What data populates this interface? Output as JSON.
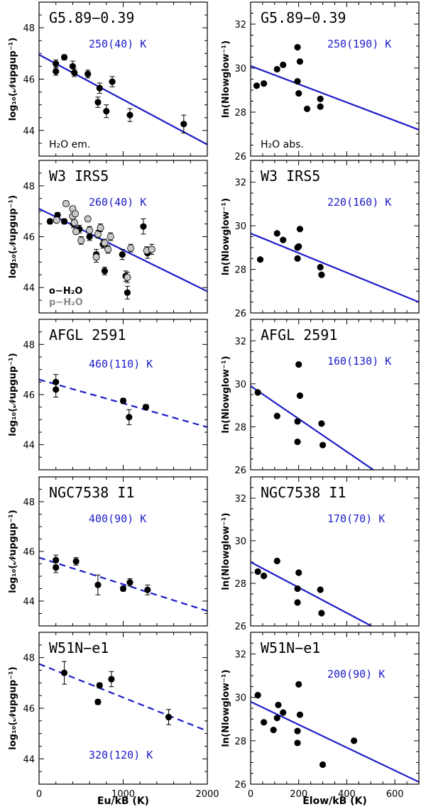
{
  "chart_data": [
    {
      "type": "scatter",
      "panel": "left-1",
      "title": "G5.89−0.39",
      "temperature_label": "250(40) K",
      "note": "H₂O em.",
      "ylabel": "log₁₀(𝒩upgup⁻¹)",
      "xlim": [
        0,
        2000
      ],
      "ylim": [
        43,
        49
      ],
      "yticks": [
        "44",
        "46",
        "48"
      ],
      "fit": {
        "style": "solid",
        "x": [
          0,
          2000
        ],
        "y": [
          46.95,
          43.45
        ]
      },
      "series": [
        {
          "x": [
            200,
            200,
            300,
            400,
            420,
            580,
            700,
            720,
            800,
            870,
            1080,
            1720
          ],
          "y": [
            46.6,
            46.3,
            46.85,
            46.5,
            46.25,
            46.2,
            45.1,
            45.65,
            44.75,
            45.9,
            44.6,
            44.25
          ],
          "yerr": [
            0.15,
            0.15,
            0.1,
            0.2,
            0.15,
            0.15,
            0.2,
            0.2,
            0.25,
            0.2,
            0.25,
            0.35
          ]
        }
      ]
    },
    {
      "type": "scatter",
      "panel": "right-1",
      "title": "G5.89−0.39",
      "temperature_label": "250(190) K",
      "note": "H₂O abs.",
      "ylabel": "ln(Nlowglow⁻¹)",
      "xlim": [
        0,
        700
      ],
      "ylim": [
        26,
        33
      ],
      "yticks": [
        "26",
        "28",
        "30",
        "32"
      ],
      "fit": {
        "style": "solid",
        "x": [
          0,
          700
        ],
        "y": [
          30.1,
          27.2
        ]
      },
      "series": [
        {
          "x": [
            25,
            55,
            110,
            135,
            195,
            195,
            200,
            205,
            235,
            290,
            290
          ],
          "y": [
            29.2,
            29.3,
            29.95,
            30.15,
            30.95,
            29.4,
            28.85,
            30.3,
            28.15,
            28.6,
            28.25
          ]
        }
      ]
    },
    {
      "type": "scatter",
      "panel": "left-2",
      "title": "W3 IRS5",
      "temperature_label": "260(40) K",
      "legend": [
        "o−H₂O",
        "p−H₂O"
      ],
      "ylabel": "log₁₀(𝒩upgup⁻¹)",
      "xlim": [
        0,
        2000
      ],
      "ylim": [
        43,
        49
      ],
      "yticks": [
        "44",
        "46",
        "48"
      ],
      "fit": {
        "style": "solid",
        "x": [
          0,
          2000
        ],
        "y": [
          47.1,
          43.85
        ]
      },
      "series": [
        {
          "name": "o−H₂O",
          "x": [
            130,
            220,
            300,
            410,
            480,
            600,
            680,
            760,
            780,
            990,
            1030,
            1050,
            1240,
            1290
          ],
          "y": [
            46.6,
            46.85,
            46.6,
            46.5,
            46.3,
            46.0,
            45.3,
            45.7,
            44.65,
            45.3,
            44.45,
            43.8,
            46.4,
            45.35
          ],
          "yerr": [
            0.1,
            0.1,
            0.1,
            0.15,
            0.15,
            0.15,
            0.2,
            0.15,
            0.15,
            0.2,
            0.2,
            0.25,
            0.3,
            0.2
          ]
        },
        {
          "name": "p−H₂O",
          "x": [
            210,
            320,
            400,
            400,
            420,
            430,
            440,
            500,
            580,
            600,
            680,
            700,
            730,
            780,
            820,
            850,
            1050,
            1090,
            1280,
            1340
          ],
          "y": [
            46.65,
            47.3,
            47.1,
            46.8,
            46.55,
            46.9,
            46.2,
            45.85,
            46.7,
            46.25,
            45.2,
            46.1,
            46.35,
            45.75,
            45.5,
            46.0,
            44.4,
            45.55,
            45.45,
            45.5
          ],
          "yerr": [
            0.1,
            0.1,
            0.1,
            0.1,
            0.1,
            0.1,
            0.1,
            0.15,
            0.1,
            0.15,
            0.2,
            0.15,
            0.15,
            0.15,
            0.15,
            0.15,
            0.2,
            0.15,
            0.15,
            0.2
          ]
        }
      ]
    },
    {
      "type": "scatter",
      "panel": "right-2",
      "title": "W3 IRS5",
      "temperature_label": "220(160) K",
      "ylabel": "ln(Nlowglow⁻¹)",
      "xlim": [
        0,
        700
      ],
      "ylim": [
        26,
        33
      ],
      "yticks": [
        "26",
        "28",
        "30",
        "32"
      ],
      "fit": {
        "style": "solid",
        "x": [
          0,
          700
        ],
        "y": [
          29.65,
          26.5
        ]
      },
      "series": [
        {
          "x": [
            40,
            110,
            135,
            195,
            195,
            200,
            205,
            290,
            295
          ],
          "y": [
            28.45,
            29.65,
            29.35,
            29.0,
            28.5,
            29.05,
            29.85,
            28.1,
            27.75
          ]
        }
      ]
    },
    {
      "type": "scatter",
      "panel": "left-3",
      "title": "AFGL 2591",
      "temperature_label": "460(110) K",
      "ylabel": "log₁₀(𝒩upgup⁻¹)",
      "xlim": [
        0,
        2000
      ],
      "ylim": [
        43,
        49
      ],
      "yticks": [
        "44",
        "46",
        "48"
      ],
      "fit": {
        "style": "dashed",
        "x": [
          0,
          2000
        ],
        "y": [
          46.6,
          44.7
        ]
      },
      "series": [
        {
          "x": [
            200,
            200,
            1000,
            1070,
            1270
          ],
          "y": [
            46.5,
            46.2,
            45.75,
            45.1,
            45.5
          ],
          "yerr": [
            0.3,
            0.3,
            0.1,
            0.3,
            0.1
          ]
        }
      ]
    },
    {
      "type": "scatter",
      "panel": "right-3",
      "title": "AFGL 2591",
      "temperature_label": "160(130) K",
      "ylabel": "ln(Nlowglow⁻¹)",
      "xlim": [
        0,
        700
      ],
      "ylim": [
        26,
        33
      ],
      "yticks": [
        "26",
        "28",
        "30",
        "32"
      ],
      "fit": {
        "style": "solid",
        "x": [
          0,
          510
        ],
        "y": [
          29.9,
          26.0
        ]
      },
      "series": [
        {
          "x": [
            30,
            110,
            195,
            195,
            200,
            205,
            295,
            300
          ],
          "y": [
            29.6,
            28.5,
            28.25,
            27.3,
            30.9,
            29.45,
            28.15,
            27.15
          ]
        }
      ]
    },
    {
      "type": "scatter",
      "panel": "left-4",
      "title": "NGC7538 I1",
      "temperature_label": "400(90) K",
      "ylabel": "log₁₀(𝒩upgup⁻¹)",
      "xlim": [
        0,
        2000
      ],
      "ylim": [
        43,
        49
      ],
      "yticks": [
        "44",
        "46",
        "48"
      ],
      "fit": {
        "style": "dashed",
        "x": [
          0,
          2000
        ],
        "y": [
          45.75,
          43.6
        ]
      },
      "series": [
        {
          "x": [
            200,
            200,
            440,
            700,
            1000,
            1080,
            1290
          ],
          "y": [
            45.65,
            45.35,
            45.6,
            44.65,
            44.5,
            44.75,
            44.45
          ],
          "yerr": [
            0.2,
            0.2,
            0.15,
            0.4,
            0.1,
            0.15,
            0.2
          ]
        }
      ]
    },
    {
      "type": "scatter",
      "panel": "right-4",
      "title": "NGC7538 I1",
      "temperature_label": "170(70) K",
      "ylabel": "ln(Nlowglow⁻¹)",
      "xlim": [
        0,
        700
      ],
      "ylim": [
        26,
        33
      ],
      "yticks": [
        "26",
        "28",
        "30",
        "32"
      ],
      "fit": {
        "style": "solid",
        "x": [
          0,
          510
        ],
        "y": [
          29.0,
          25.95
        ]
      },
      "series": [
        {
          "x": [
            30,
            55,
            110,
            195,
            195,
            200,
            290,
            295
          ],
          "y": [
            28.55,
            28.35,
            29.05,
            27.75,
            27.1,
            28.5,
            27.7,
            26.6
          ]
        }
      ]
    },
    {
      "type": "scatter",
      "panel": "left-5",
      "title": "W51N−e1",
      "temperature_label": "320(120) K",
      "ylabel": "log₁₀(𝒩upgup⁻¹)",
      "xlabel": "Eu/kB (K)",
      "xlim": [
        0,
        2000
      ],
      "ylim": [
        43,
        49
      ],
      "yticks": [
        "44",
        "46",
        "48"
      ],
      "xticks": [
        "0",
        "1000",
        "2000"
      ],
      "fit": {
        "style": "dashed",
        "x": [
          0,
          2000
        ],
        "y": [
          47.75,
          45.1
        ]
      },
      "series": [
        {
          "x": [
            300,
            700,
            720,
            860,
            1540
          ],
          "y": [
            47.4,
            46.25,
            46.9,
            47.15,
            45.65
          ],
          "yerr": [
            0.45,
            0.1,
            0.1,
            0.3,
            0.3
          ]
        }
      ]
    },
    {
      "type": "scatter",
      "panel": "right-5",
      "title": "W51N−e1",
      "temperature_label": "200(90) K",
      "ylabel": "ln(Nlowglow⁻¹)",
      "xlabel": "Elow/kB (K)",
      "xlim": [
        0,
        700
      ],
      "ylim": [
        26,
        33
      ],
      "yticks": [
        "26",
        "28",
        "30",
        "32"
      ],
      "xticks": [
        "0",
        "200",
        "400",
        "600"
      ],
      "fit": {
        "style": "solid",
        "x": [
          0,
          700
        ],
        "y": [
          29.8,
          26.1
        ]
      },
      "series": [
        {
          "x": [
            30,
            55,
            95,
            110,
            115,
            135,
            195,
            195,
            200,
            205,
            300,
            430
          ],
          "y": [
            30.1,
            28.85,
            28.5,
            29.05,
            29.65,
            29.3,
            27.9,
            28.45,
            30.6,
            29.2,
            26.9,
            28.0
          ]
        }
      ]
    }
  ]
}
